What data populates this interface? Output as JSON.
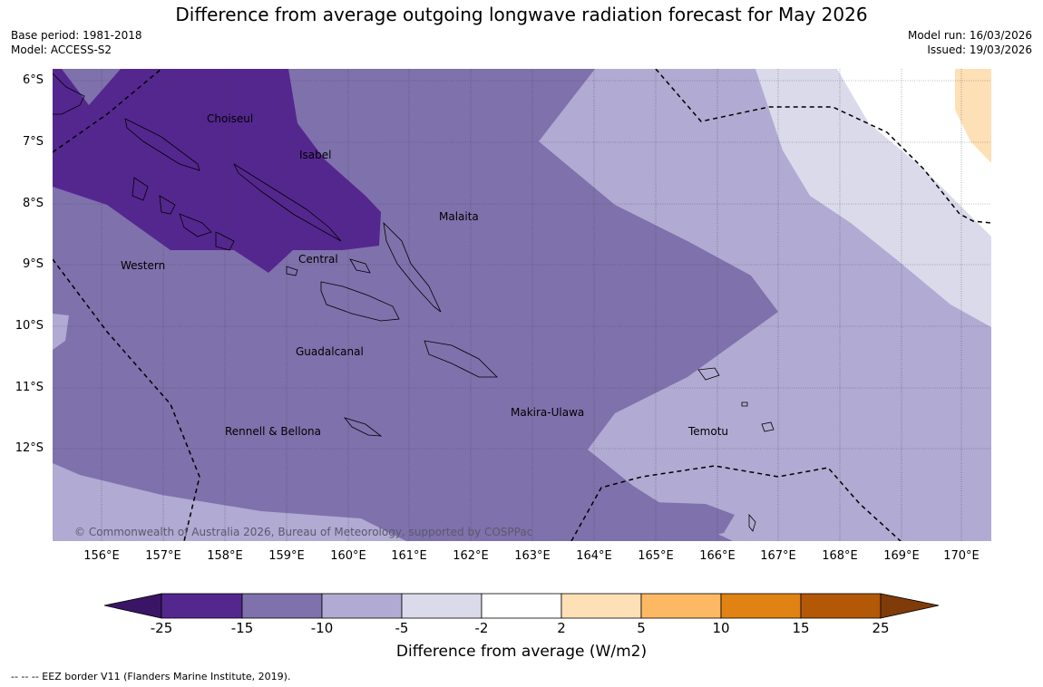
{
  "title": "Difference from average outgoing longwave radiation forecast for May 2026",
  "meta_left": {
    "base_period": "Base period: 1981-2018",
    "model": "Model: ACCESS-S2"
  },
  "meta_right": {
    "model_run": "Model run: 16/03/2026",
    "issued": "Issued: 19/03/2026"
  },
  "map": {
    "lat_labels": [
      "6°S",
      "7°S",
      "8°S",
      "9°S",
      "10°S",
      "11°S",
      "12°S"
    ],
    "lon_labels": [
      "156°E",
      "157°E",
      "158°E",
      "159°E",
      "160°E",
      "161°E",
      "162°E",
      "163°E",
      "164°E",
      "165°E",
      "166°E",
      "167°E",
      "168°E",
      "169°E",
      "170°E"
    ],
    "regions": [
      {
        "name": "Choiseul"
      },
      {
        "name": "Isabel"
      },
      {
        "name": "Malaita"
      },
      {
        "name": "Western"
      },
      {
        "name": "Central"
      },
      {
        "name": "Guadalcanal"
      },
      {
        "name": "Makira-Ulawa"
      },
      {
        "name": "Rennell & Bellona"
      },
      {
        "name": "Temotu"
      }
    ],
    "copyright": "© Commonwealth of Australia 2026, Bureau of Meteorology, supported by COSPPac"
  },
  "colorbar": {
    "ticks": [
      "-25",
      "-15",
      "-10",
      "-5",
      "-2",
      "2",
      "5",
      "10",
      "15",
      "25"
    ],
    "colors": [
      "#3b1565",
      "#54278f",
      "#7f71ac",
      "#b1aad2",
      "#dadaeb",
      "#ffffff",
      "#fee0b6",
      "#fdb863",
      "#e08214",
      "#b35806",
      "#7f3b08"
    ],
    "label": "Difference from average (W/m2)"
  },
  "eez_note": "--  --  -- EEZ border V11 (Flanders Marine Institute, 2019)."
}
